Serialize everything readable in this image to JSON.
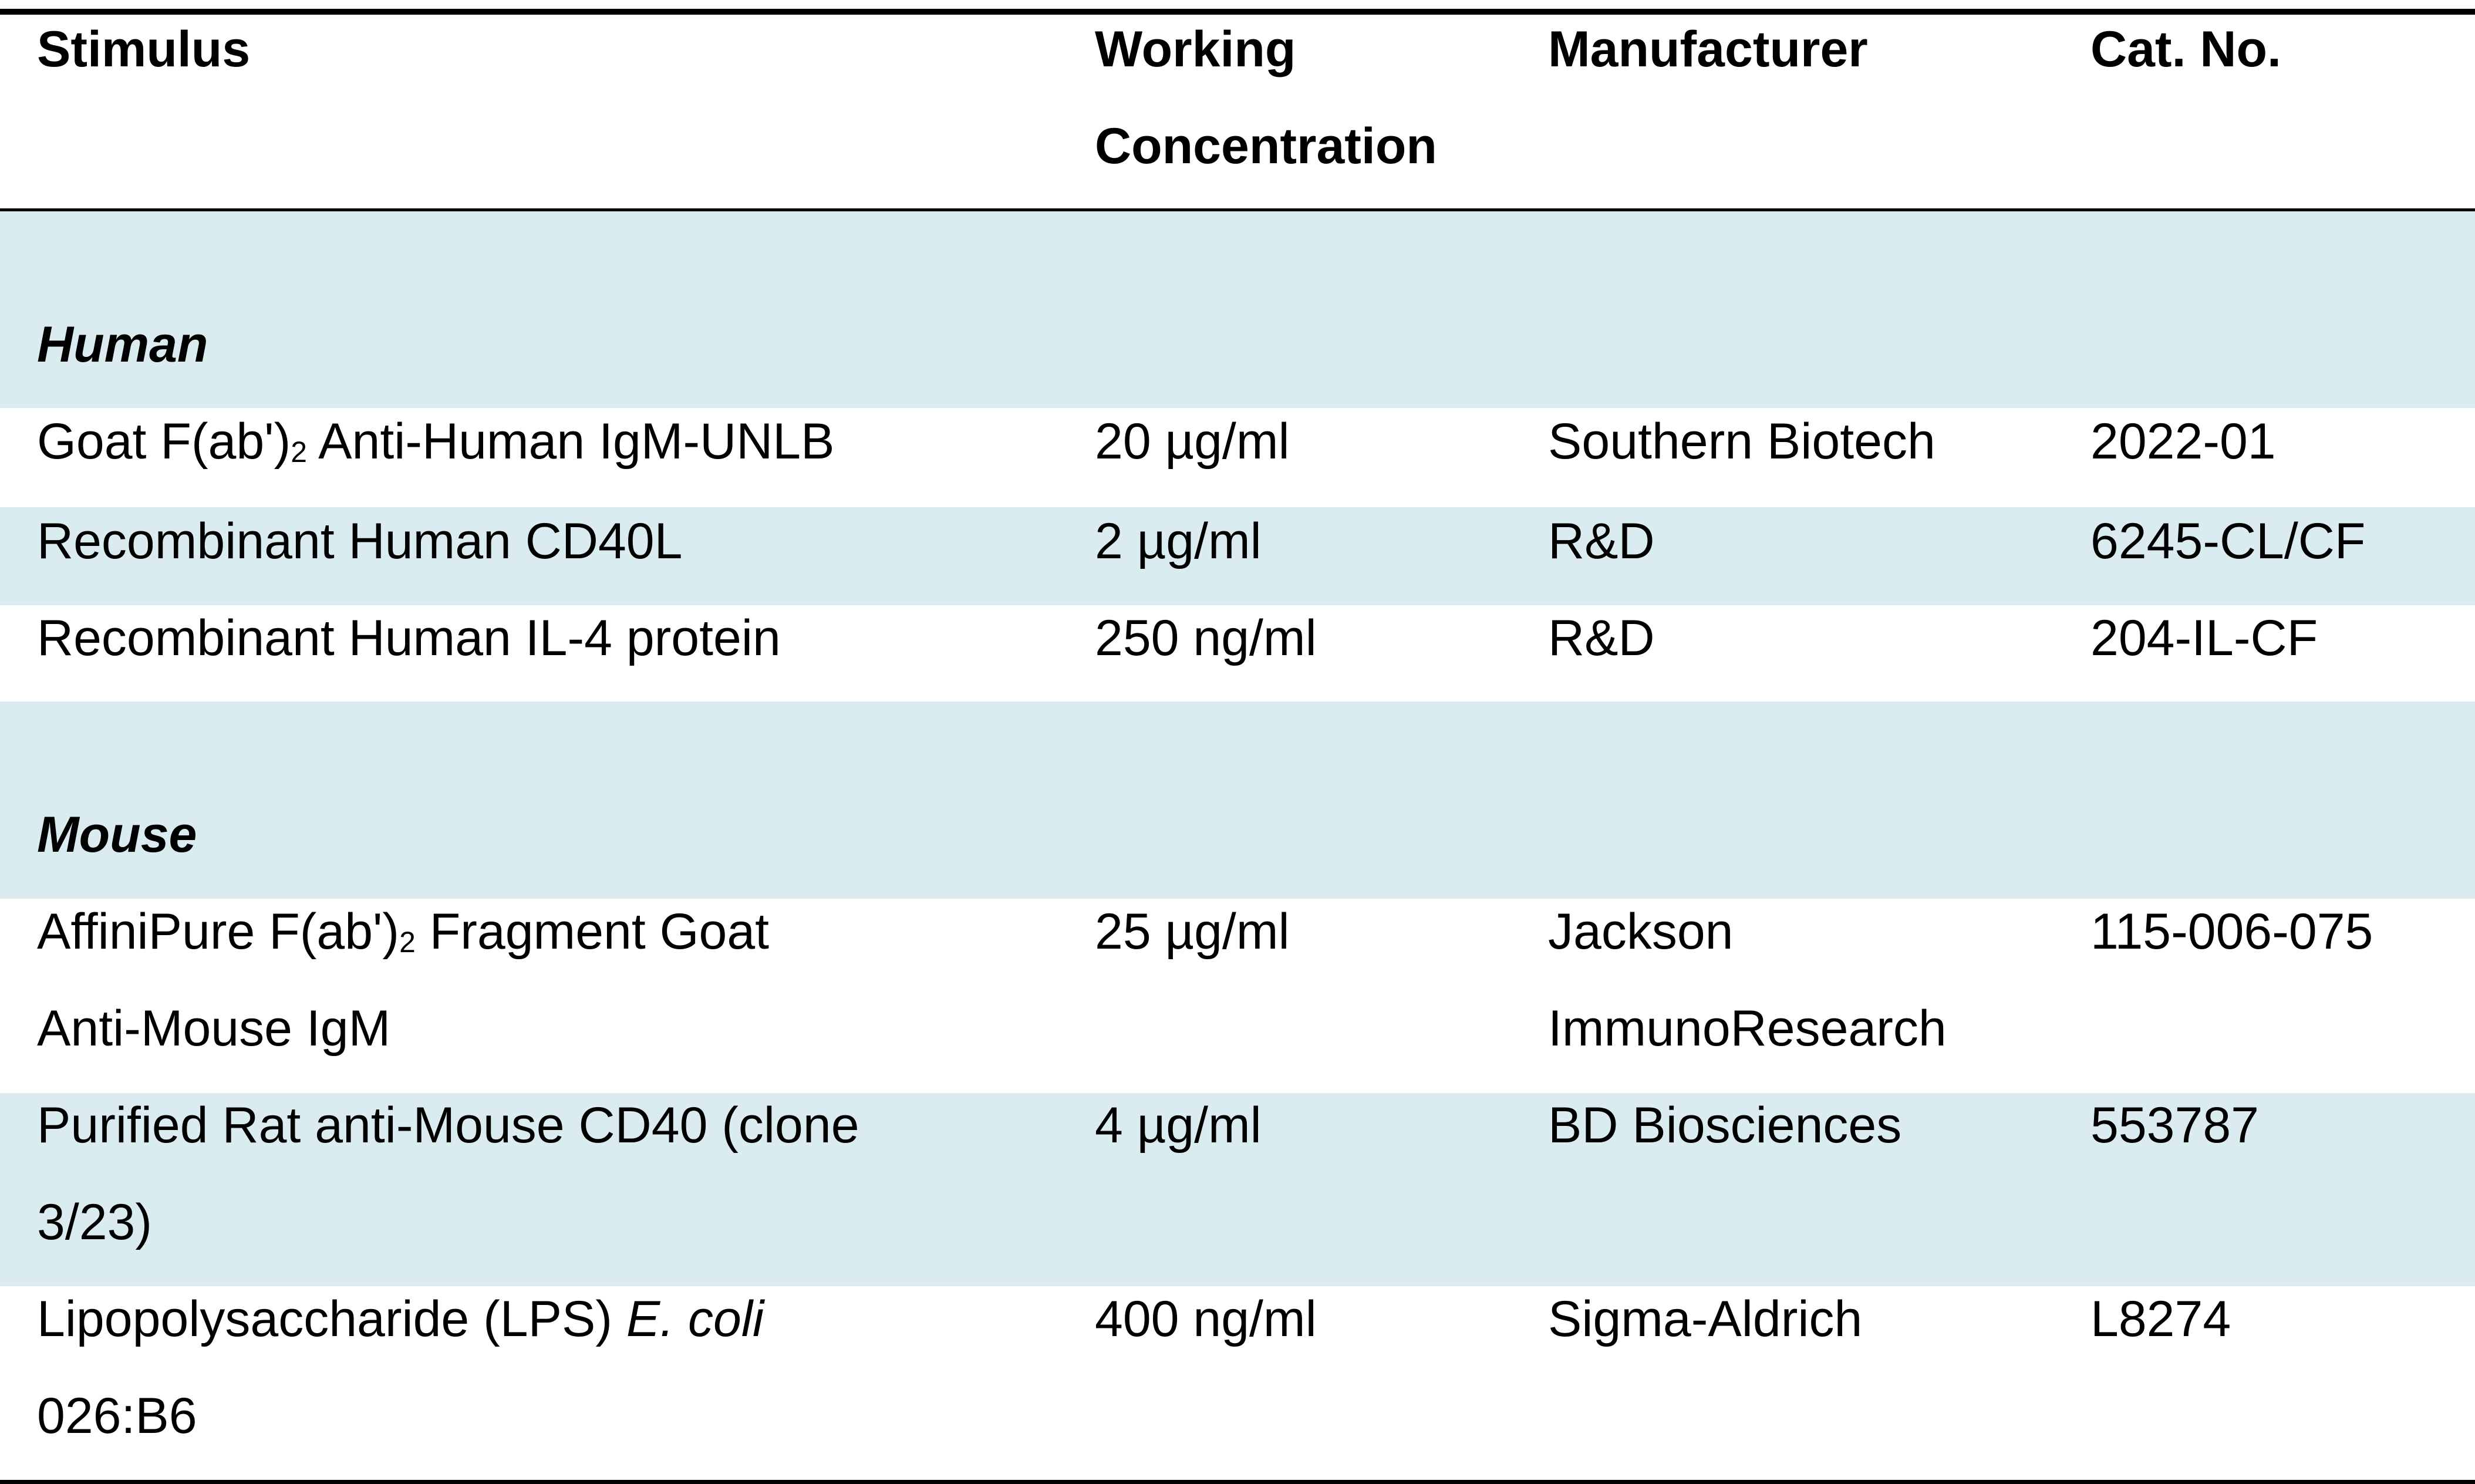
{
  "table": {
    "headers": {
      "stimulus": "Stimulus",
      "concentration_line1": "Working",
      "concentration_line2": "Concentration",
      "manufacturer": "Manufacturer",
      "cat_no": "Cat. No."
    },
    "groups": [
      {
        "name": "Human",
        "rows": [
          {
            "stimulus_pre": "Goat F(ab')",
            "stimulus_sub": "2",
            "stimulus_post": " Anti-Human IgM-UNLB",
            "concentration": "20 µg/ml",
            "manufacturer": "Southern Biotech",
            "cat_no": "2022-01"
          },
          {
            "stimulus": "Recombinant Human CD40L",
            "concentration": "2 µg/ml",
            "manufacturer": "R&D",
            "cat_no": "6245-CL/CF"
          },
          {
            "stimulus": "Recombinant Human IL-4 protein",
            "concentration": "250 ng/ml",
            "manufacturer": "R&D",
            "cat_no": "204-IL-CF"
          }
        ]
      },
      {
        "name": "Mouse",
        "rows": [
          {
            "stimulus_pre": "AffiniPure F(ab')",
            "stimulus_sub": "2",
            "stimulus_post": " Fragment Goat",
            "stimulus_line2": "Anti-Mouse IgM",
            "concentration": "25 µg/ml",
            "manufacturer_line1": "Jackson",
            "manufacturer_line2": "ImmunoResearch",
            "cat_no": "115-006-075"
          },
          {
            "stimulus_line1": "Purified Rat anti-Mouse CD40 (clone",
            "stimulus_line2": "3/23)",
            "concentration": "4 µg/ml",
            "manufacturer": "BD Biosciences",
            "cat_no": "553787"
          },
          {
            "stimulus_pre": "Lipopolysaccharide (LPS) ",
            "stimulus_italic": "E. coli",
            "stimulus_line2": "026:B6",
            "concentration": "400 ng/ml",
            "manufacturer": "Sigma-Aldrich",
            "cat_no": "L8274"
          }
        ]
      }
    ],
    "band_color": "#dbecf1"
  }
}
